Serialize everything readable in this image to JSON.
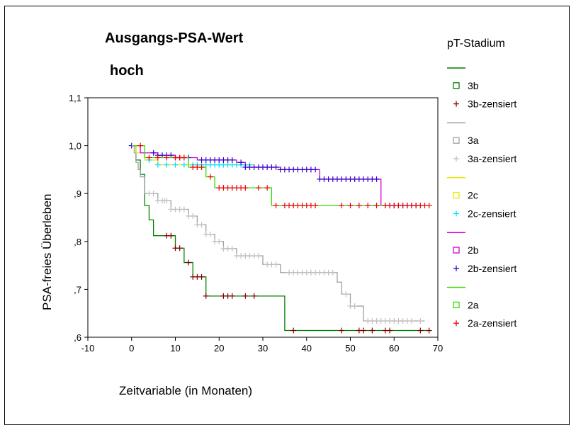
{
  "chart_data": {
    "type": "line",
    "title_line1": "Ausgangs-PSA-Wert",
    "title_line2": "hoch",
    "xlabel": "Zeitvariable (in Monaten)",
    "ylabel": "PSA-freies Überleben",
    "xlim": [
      -10,
      70
    ],
    "ylim": [
      0.6,
      1.1
    ],
    "xticks": [
      "-10",
      "0",
      "10",
      "20",
      "30",
      "40",
      "50",
      "60",
      "70"
    ],
    "yticks": [
      ",6",
      ",7",
      ",8",
      ",9",
      "1,0",
      "1,1"
    ],
    "legend_title": "pT-Stadium",
    "legend": [
      {
        "label": "",
        "kind": "line",
        "color": "#008000"
      },
      {
        "label": "3b",
        "kind": "square",
        "color": "#008000"
      },
      {
        "label": "3b-zensiert",
        "kind": "plus",
        "color": "#800000"
      },
      {
        "label": "",
        "kind": "line",
        "color": "#a0a0a0"
      },
      {
        "label": "3a",
        "kind": "square",
        "color": "#a0a0a0"
      },
      {
        "label": "3a-zensiert",
        "kind": "plus",
        "color": "#c0c0c0"
      },
      {
        "label": "",
        "kind": "line",
        "color": "#e8e800"
      },
      {
        "label": "2c",
        "kind": "square",
        "color": "#e8e800"
      },
      {
        "label": "2c-zensiert",
        "kind": "plus",
        "color": "#00e0ff"
      },
      {
        "label": "",
        "kind": "line",
        "color": "#d000d0"
      },
      {
        "label": "2b",
        "kind": "square",
        "color": "#d000d0"
      },
      {
        "label": "2b-zensiert",
        "kind": "plus",
        "color": "#3300cc"
      },
      {
        "label": "",
        "kind": "line",
        "color": "#33dd00"
      },
      {
        "label": "2a",
        "kind": "square",
        "color": "#33dd00"
      },
      {
        "label": "2a-zensiert",
        "kind": "plus",
        "color": "#ee0000"
      }
    ],
    "series": [
      {
        "name": "3b",
        "color": "#008000",
        "censor_color": "#800000",
        "steps": [
          [
            0,
            1.0
          ],
          [
            1,
            0.97
          ],
          [
            2,
            0.94
          ],
          [
            3,
            0.875
          ],
          [
            4,
            0.845
          ],
          [
            5,
            0.812
          ],
          [
            10,
            0.786
          ],
          [
            12,
            0.756
          ],
          [
            14,
            0.726
          ],
          [
            17,
            0.686
          ],
          [
            35,
            0.614
          ],
          [
            68,
            0.614
          ]
        ],
        "censored": [
          8,
          9,
          10,
          11,
          13,
          14,
          15,
          16,
          17,
          21,
          22,
          23,
          26,
          28,
          37,
          48,
          52,
          53,
          55,
          58,
          59,
          66,
          68
        ]
      },
      {
        "name": "3a",
        "color": "#a0a0a0",
        "censor_color": "#c0c0c0",
        "steps": [
          [
            0,
            1.0
          ],
          [
            0.6,
            0.985
          ],
          [
            1,
            0.965
          ],
          [
            1.5,
            0.95
          ],
          [
            2,
            0.935
          ],
          [
            3,
            0.9
          ],
          [
            6,
            0.885
          ],
          [
            9,
            0.867
          ],
          [
            13,
            0.853
          ],
          [
            15,
            0.835
          ],
          [
            17,
            0.815
          ],
          [
            19,
            0.8
          ],
          [
            21,
            0.785
          ],
          [
            24,
            0.77
          ],
          [
            30,
            0.752
          ],
          [
            34,
            0.735
          ],
          [
            47,
            0.715
          ],
          [
            48,
            0.69
          ],
          [
            50,
            0.665
          ],
          [
            53,
            0.634
          ],
          [
            67,
            0.634
          ]
        ],
        "censored": [
          4,
          5,
          6,
          7,
          7.5,
          8,
          9,
          10,
          11,
          12,
          13,
          14,
          15,
          16,
          17,
          18,
          19,
          20,
          21,
          22,
          23,
          24,
          25,
          26,
          27,
          28,
          29,
          31,
          32,
          33,
          36,
          37,
          38,
          39,
          40,
          41,
          42,
          43,
          44,
          45,
          46,
          49,
          50,
          51,
          54,
          55,
          56,
          57,
          58,
          59,
          60,
          61,
          62,
          63,
          64,
          66
        ]
      },
      {
        "name": "2c",
        "color": "#e8e800",
        "censor_color": "#00e0ff",
        "steps": [
          [
            0,
            1.0
          ],
          [
            1,
            0.985
          ],
          [
            3,
            0.97
          ],
          [
            6,
            0.96
          ],
          [
            28,
            0.96
          ]
        ],
        "censored": [
          4,
          6,
          8,
          10,
          12,
          14,
          15,
          16,
          17,
          18,
          19,
          20,
          21,
          22,
          23,
          24,
          25,
          26,
          27
        ]
      },
      {
        "name": "2b",
        "color": "#d000d0",
        "censor_color": "#3300cc",
        "steps": [
          [
            0,
            1.0
          ],
          [
            2,
            0.985
          ],
          [
            6,
            0.98
          ],
          [
            10,
            0.975
          ],
          [
            15,
            0.97
          ],
          [
            24,
            0.965
          ],
          [
            26,
            0.955
          ],
          [
            34,
            0.95
          ],
          [
            43,
            0.93
          ],
          [
            57,
            0.875
          ],
          [
            65,
            0.875
          ]
        ],
        "censored": [
          0,
          5,
          6,
          7,
          8,
          9,
          10,
          11,
          13,
          16,
          17,
          18,
          19,
          20,
          21,
          22,
          23,
          25,
          26,
          27,
          28,
          29,
          30,
          31,
          32,
          33,
          34,
          35,
          36,
          37,
          38,
          39,
          40,
          41,
          42,
          43,
          44,
          45,
          46,
          47,
          48,
          49,
          50,
          51,
          52,
          53,
          54,
          55,
          56,
          58,
          59,
          60,
          61,
          62,
          63,
          64,
          65
        ]
      },
      {
        "name": "2a",
        "color": "#33dd00",
        "censor_color": "#ee0000",
        "steps": [
          [
            0,
            1.0
          ],
          [
            3,
            0.975
          ],
          [
            13,
            0.955
          ],
          [
            17,
            0.935
          ],
          [
            19,
            0.912
          ],
          [
            32,
            0.875
          ],
          [
            67,
            0.875
          ]
        ],
        "censored": [
          2,
          4,
          6,
          8,
          10,
          11,
          12,
          14,
          15,
          16,
          18,
          20,
          21,
          22,
          23,
          24,
          25,
          26,
          29,
          31,
          33,
          35,
          36,
          37,
          38,
          39,
          40,
          41,
          42,
          48,
          50,
          52,
          54,
          56,
          58,
          59,
          60,
          61,
          62,
          63,
          64,
          65,
          66,
          67,
          68
        ]
      }
    ]
  }
}
